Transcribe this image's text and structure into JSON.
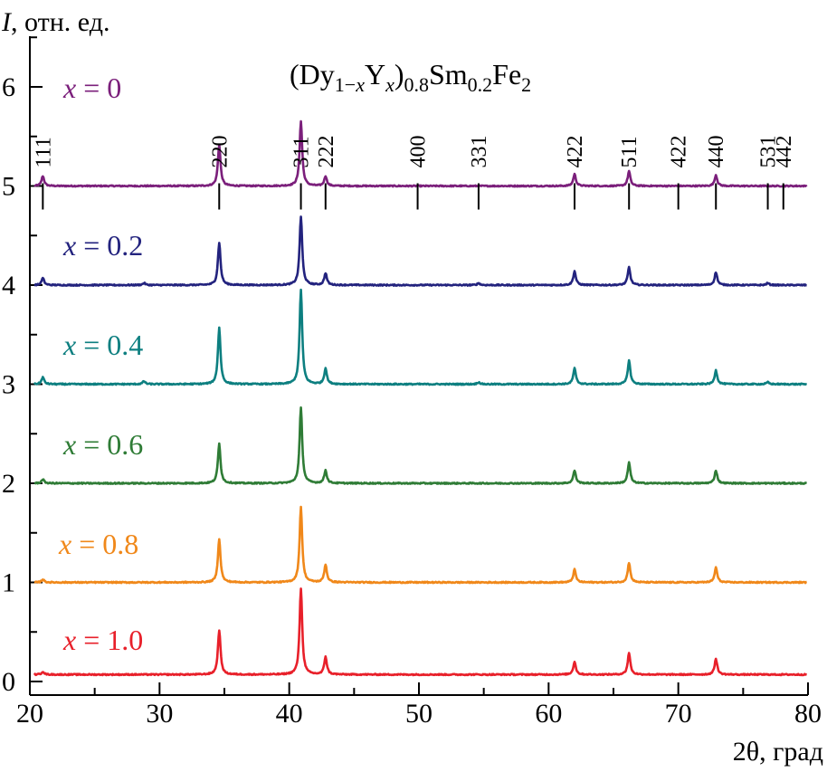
{
  "chart_data": {
    "type": "line",
    "title": "(Dy1−xYx)0.8Sm0.2Fe2",
    "title_parts": {
      "open": "(Dy",
      "sub1": "1−",
      "sub1_italic": "x",
      "y": "Y",
      "sub2_italic": "x",
      "close": ")",
      "sub3": "0.8",
      "sm": "Sm",
      "sub4": "0.2",
      "fe": "Fe",
      "sub5": "2"
    },
    "ylabel_italic": "I",
    "ylabel_rest": ", отн. ед.",
    "xlabel": "2θ, град",
    "xlim": [
      20,
      80
    ],
    "ylim": [
      0,
      6.6
    ],
    "x_ticks": [
      20,
      30,
      40,
      50,
      60,
      70,
      80
    ],
    "y_ticks": [
      0,
      1,
      2,
      3,
      4,
      5,
      6
    ],
    "grid": false,
    "legend": "inline labels on left",
    "peak_labels": [
      {
        "hkl": "111",
        "x": 21.0
      },
      {
        "hkl": "220",
        "x": 34.6
      },
      {
        "hkl": "311",
        "x": 40.9
      },
      {
        "hkl": "222",
        "x": 42.8
      },
      {
        "hkl": "400",
        "x": 49.9
      },
      {
        "hkl": "331",
        "x": 54.6
      },
      {
        "hkl": "422",
        "x": 62.0
      },
      {
        "hkl": "511",
        "x": 66.2
      },
      {
        "hkl": "422",
        "x": 70.0
      },
      {
        "hkl": "440",
        "x": 72.9
      },
      {
        "hkl": "531",
        "x": 76.9
      },
      {
        "hkl": "442",
        "x": 78.1
      }
    ],
    "series": [
      {
        "name": "x = 0",
        "var": "x",
        "value": " = 0",
        "color": "#7b1f7b",
        "baseline": 5.0,
        "peaks": [
          [
            21.0,
            0.1
          ],
          [
            34.6,
            0.42
          ],
          [
            40.9,
            0.65
          ],
          [
            42.8,
            0.1
          ],
          [
            62.0,
            0.12
          ],
          [
            66.2,
            0.15
          ],
          [
            72.9,
            0.11
          ]
        ]
      },
      {
        "name": "x = 0.2",
        "var": "x",
        "value": " = 0.2",
        "color": "#23237e",
        "baseline": 4.0,
        "peaks": [
          [
            21.0,
            0.07
          ],
          [
            28.8,
            0.02
          ],
          [
            34.6,
            0.43
          ],
          [
            40.9,
            0.69
          ],
          [
            42.8,
            0.12
          ],
          [
            54.6,
            0.02
          ],
          [
            62.0,
            0.14
          ],
          [
            66.2,
            0.18
          ],
          [
            72.9,
            0.13
          ],
          [
            76.9,
            0.02
          ]
        ]
      },
      {
        "name": "x = 0.4",
        "var": "x",
        "value": " = 0.4",
        "color": "#0d7f80",
        "baseline": 3.0,
        "peaks": [
          [
            21.0,
            0.07
          ],
          [
            28.8,
            0.03
          ],
          [
            34.6,
            0.57
          ],
          [
            40.9,
            0.95
          ],
          [
            42.8,
            0.16
          ],
          [
            54.6,
            0.02
          ],
          [
            62.0,
            0.16
          ],
          [
            66.2,
            0.24
          ],
          [
            72.9,
            0.14
          ],
          [
            76.9,
            0.02
          ]
        ]
      },
      {
        "name": "x = 0.6",
        "var": "x",
        "value": " = 0.6",
        "color": "#2f7c36",
        "baseline": 2.0,
        "peaks": [
          [
            21.0,
            0.04
          ],
          [
            34.6,
            0.4
          ],
          [
            40.9,
            0.76
          ],
          [
            42.8,
            0.13
          ],
          [
            62.0,
            0.13
          ],
          [
            66.2,
            0.21
          ],
          [
            72.9,
            0.13
          ]
        ]
      },
      {
        "name": "x = 0.8",
        "var": "x",
        "value": " = 0.8",
        "color": "#f0881a",
        "baseline": 1.0,
        "peaks": [
          [
            21.0,
            0.03
          ],
          [
            34.6,
            0.44
          ],
          [
            40.9,
            0.76
          ],
          [
            42.8,
            0.18
          ],
          [
            62.0,
            0.13
          ],
          [
            66.2,
            0.2
          ],
          [
            72.9,
            0.15
          ]
        ]
      },
      {
        "name": "x = 1.0",
        "var": "x",
        "value": " = 1.0",
        "color": "#e8202a",
        "baseline": 0.07,
        "peaks": [
          [
            21.0,
            0.03
          ],
          [
            34.6,
            0.45
          ],
          [
            40.9,
            0.87
          ],
          [
            42.8,
            0.18
          ],
          [
            62.0,
            0.13
          ],
          [
            66.2,
            0.22
          ],
          [
            72.9,
            0.16
          ]
        ]
      }
    ]
  }
}
